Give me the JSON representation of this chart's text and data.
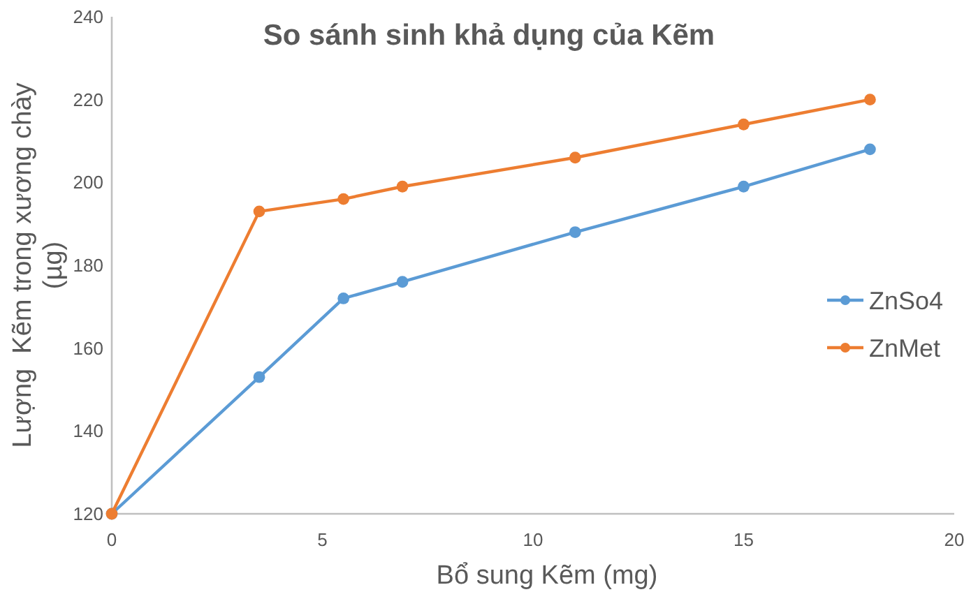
{
  "chart_data": {
    "type": "line",
    "title": "So sánh sinh khả dụng của Kẽm",
    "xlabel": "Bổ sung Kẽm (mg)",
    "ylabel": "Lượng  Kẽm trong xương chày (µg)",
    "x": [
      0,
      3.5,
      5.5,
      6.9,
      11,
      15,
      18
    ],
    "series": [
      {
        "name": "ZnSo4",
        "color": "#5b9bd5",
        "values": [
          120,
          153,
          172,
          176,
          188,
          199,
          208
        ]
      },
      {
        "name": "ZnMet",
        "color": "#ed7d31",
        "values": [
          120,
          193,
          196,
          199,
          206,
          214,
          220
        ]
      }
    ],
    "xlim": [
      0,
      20
    ],
    "xticks": [
      0,
      5,
      10,
      15,
      20
    ],
    "ylim": [
      120,
      240
    ],
    "yticks": [
      120,
      140,
      160,
      180,
      200,
      220,
      240
    ],
    "legend": "right",
    "marker": "circle"
  }
}
